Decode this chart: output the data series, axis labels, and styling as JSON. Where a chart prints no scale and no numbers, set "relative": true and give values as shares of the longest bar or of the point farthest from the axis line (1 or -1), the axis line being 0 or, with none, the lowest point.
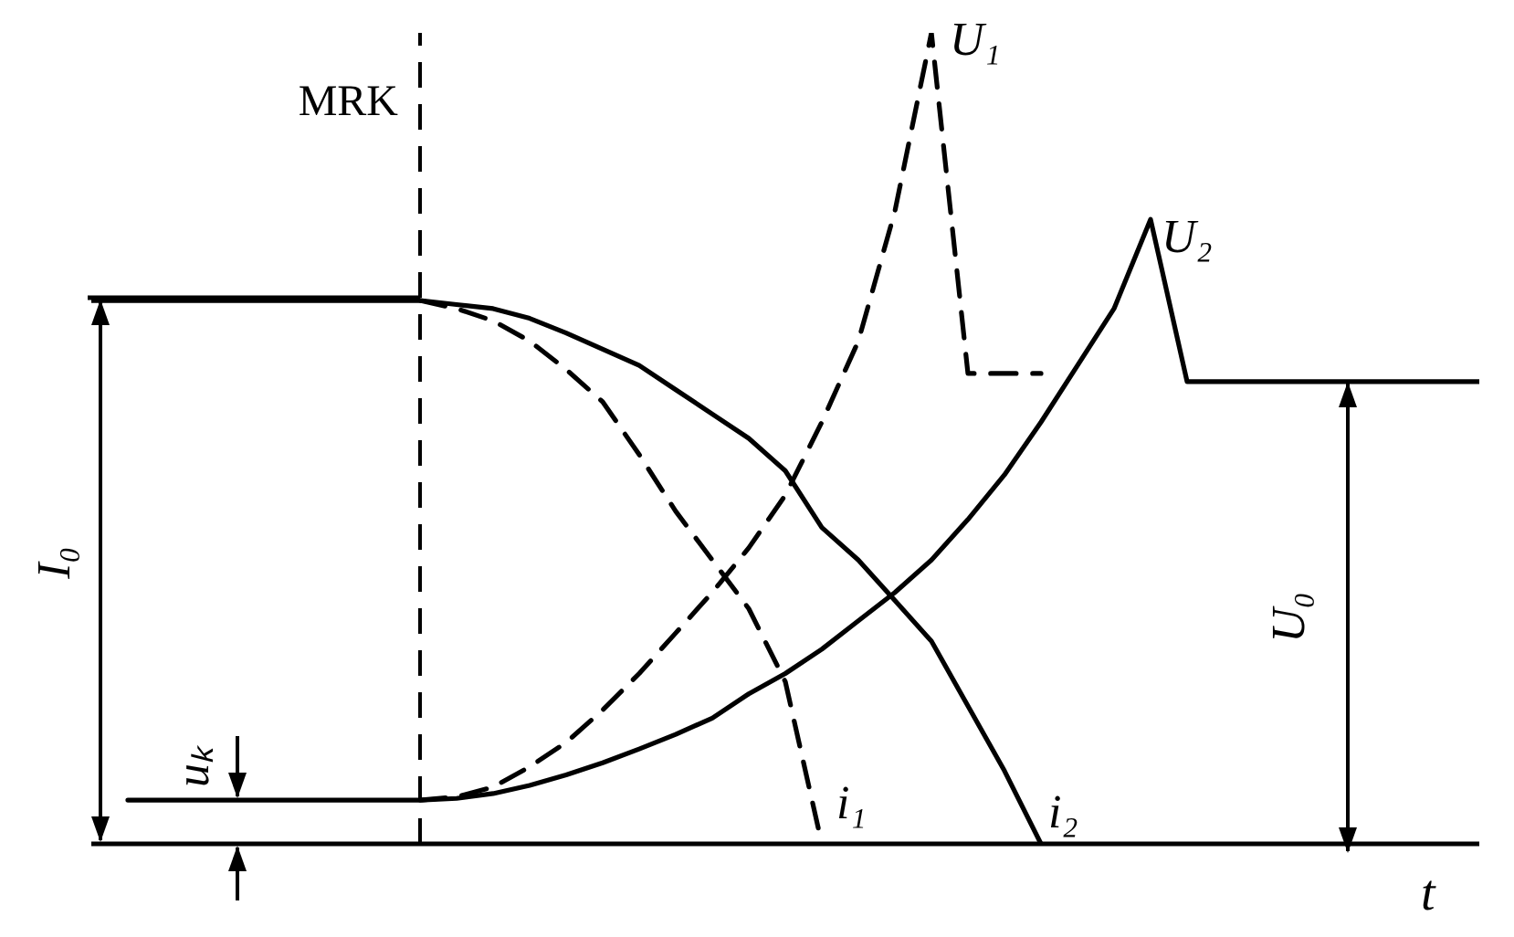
{
  "chart_data": {
    "type": "line",
    "relative": true,
    "xlabel": "t",
    "marker": "none",
    "categories": [
      null,
      null,
      null,
      null,
      null,
      null,
      null,
      null,
      null,
      null,
      null,
      null,
      null,
      null,
      null,
      null,
      null,
      null,
      null,
      null,
      null,
      null,
      null,
      null,
      null,
      null,
      null,
      null,
      null,
      null,
      null,
      null,
      null,
      null,
      null,
      null,
      null,
      null,
      null
    ],
    "series": [
      {
        "name": "i₁",
        "color": "#000000",
        "line_style": "dashed",
        "values": [
          null,
          null,
          null,
          null,
          null,
          null,
          null,
          null,
          null,
          0.67,
          0.66,
          0.645,
          0.62,
          0.585,
          0.545,
          0.48,
          0.41,
          0.35,
          0.29,
          0.2,
          0,
          null,
          null,
          null,
          null,
          null,
          null,
          null,
          null,
          null,
          null,
          null,
          null,
          null,
          null,
          null,
          null,
          null,
          null
        ]
      },
      {
        "name": "i₂",
        "color": "#000000",
        "line_style": "solid",
        "values": [
          0.67,
          0.67,
          0.67,
          0.67,
          0.67,
          0.67,
          0.67,
          0.67,
          0.67,
          0.67,
          0.665,
          0.66,
          0.648,
          0.63,
          0.61,
          0.59,
          0.56,
          0.53,
          0.5,
          0.46,
          0.39,
          0.35,
          0.3,
          0.25,
          0.17,
          0.09,
          0,
          null,
          null,
          null,
          null,
          null,
          null,
          null,
          null,
          null,
          null,
          null,
          null
        ]
      },
      {
        "name": "U₁",
        "color": "#000000",
        "line_style": "dashed",
        "values": [
          null,
          null,
          null,
          null,
          null,
          null,
          null,
          null,
          null,
          0.054,
          0.058,
          0.07,
          0.095,
          0.125,
          0.165,
          0.21,
          0.26,
          0.31,
          0.365,
          0.43,
          0.52,
          0.62,
          0.78,
          1.0,
          0.58,
          0.58,
          0.58,
          null,
          null,
          null,
          null,
          null,
          null,
          null,
          null,
          null,
          null,
          null,
          null
        ]
      },
      {
        "name": "U₂",
        "color": "#000000",
        "line_style": "solid",
        "values": [
          null,
          0.054,
          0.054,
          0.054,
          0.054,
          0.054,
          0.054,
          0.054,
          0.054,
          0.054,
          0.056,
          0.062,
          0.072,
          0.085,
          0.1,
          0.117,
          0.135,
          0.155,
          0.185,
          0.21,
          0.24,
          0.275,
          0.31,
          0.35,
          0.4,
          0.455,
          0.52,
          0.59,
          0.66,
          0.77,
          0.57,
          0.57,
          0.57,
          0.57,
          0.57,
          0.57,
          0.57,
          0.57,
          0.57
        ]
      }
    ],
    "ref_lines": [
      {
        "axis": "x",
        "label": "MRK",
        "line_style": "dashed",
        "color": "#000000"
      }
    ],
    "annotations": [
      "I₀",
      "U₀",
      "uₖ"
    ]
  }
}
